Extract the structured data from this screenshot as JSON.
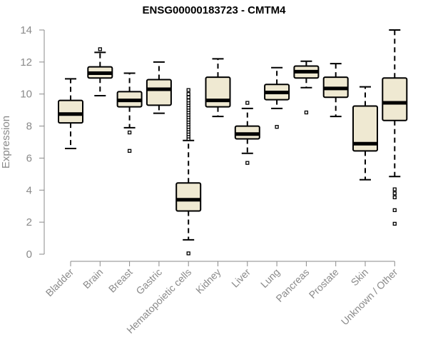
{
  "chart_data": {
    "type": "boxplot",
    "title": "ENSG00000183723 - CMTM4",
    "xlabel": "",
    "ylabel": "Expression",
    "ylim": [
      0,
      14
    ],
    "yticks": [
      0,
      2,
      4,
      6,
      8,
      10,
      12,
      14
    ],
    "grid": false,
    "box_fill": "#efe9d2",
    "box_stroke": "#000000",
    "axis_color": "#8a8a8a",
    "categories": [
      "Bladder",
      "Brain",
      "Breast",
      "Gastric",
      "Hematopoietic cells",
      "Kidney",
      "Liver",
      "Lung",
      "Pancreas",
      "Prostate",
      "Skin",
      "Unknown / Other"
    ],
    "boxes": [
      {
        "category": "Bladder",
        "whisker_low": 6.6,
        "q1": 8.2,
        "median": 8.75,
        "q3": 9.6,
        "whisker_high": 10.95,
        "outliers": []
      },
      {
        "category": "Brain",
        "whisker_low": 9.9,
        "q1": 11.0,
        "median": 11.3,
        "q3": 11.7,
        "whisker_high": 12.6,
        "outliers": [
          12.8
        ]
      },
      {
        "category": "Breast",
        "whisker_low": 7.9,
        "q1": 9.2,
        "median": 9.6,
        "q3": 10.15,
        "whisker_high": 11.3,
        "outliers": [
          7.6,
          6.45
        ]
      },
      {
        "category": "Gastric",
        "whisker_low": 8.8,
        "q1": 9.3,
        "median": 10.3,
        "q3": 10.9,
        "whisker_high": 12.0,
        "outliers": []
      },
      {
        "category": "Hematopoietic cells",
        "whisker_low": 0.9,
        "q1": 2.7,
        "median": 3.4,
        "q3": 4.45,
        "whisker_high": 7.1,
        "outliers": [
          0.05,
          7.2,
          7.35,
          7.5,
          7.65,
          7.8,
          7.95,
          8.1,
          8.25,
          8.4,
          8.55,
          8.7,
          8.85,
          9.0,
          9.15,
          9.3,
          9.45,
          9.6,
          9.8,
          10.0,
          10.25
        ]
      },
      {
        "category": "Kidney",
        "whisker_low": 8.6,
        "q1": 9.2,
        "median": 9.6,
        "q3": 11.05,
        "whisker_high": 12.2,
        "outliers": []
      },
      {
        "category": "Liver",
        "whisker_low": 6.3,
        "q1": 7.2,
        "median": 7.5,
        "q3": 8.0,
        "whisker_high": 9.1,
        "outliers": [
          9.45,
          5.7
        ]
      },
      {
        "category": "Lung",
        "whisker_low": 9.1,
        "q1": 9.65,
        "median": 10.1,
        "q3": 10.6,
        "whisker_high": 11.65,
        "outliers": [
          7.95
        ]
      },
      {
        "category": "Pancreas",
        "whisker_low": 10.4,
        "q1": 11.0,
        "median": 11.4,
        "q3": 11.75,
        "whisker_high": 12.05,
        "outliers": [
          8.85
        ]
      },
      {
        "category": "Prostate",
        "whisker_low": 8.6,
        "q1": 9.8,
        "median": 10.35,
        "q3": 11.05,
        "whisker_high": 11.9,
        "outliers": []
      },
      {
        "category": "Skin",
        "whisker_low": 4.65,
        "q1": 6.45,
        "median": 6.9,
        "q3": 9.25,
        "whisker_high": 10.45,
        "outliers": []
      },
      {
        "category": "Unknown / Other",
        "whisker_low": 4.85,
        "q1": 8.35,
        "median": 9.45,
        "q3": 11.0,
        "whisker_high": 14.0,
        "outliers": [
          4.05,
          3.8,
          3.55,
          2.75,
          1.9
        ]
      }
    ]
  }
}
